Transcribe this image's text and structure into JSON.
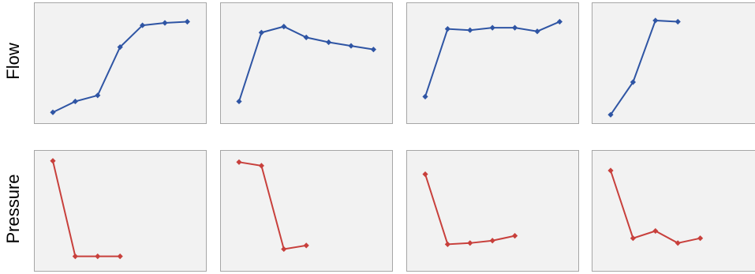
{
  "chart_data": [
    {
      "type": "line",
      "ylabel": "Flow",
      "color": "#2f55a4",
      "ylim": [
        0,
        100
      ],
      "values": [
        9,
        18,
        23,
        63,
        81,
        83,
        84
      ]
    },
    {
      "type": "line",
      "color": "#2f55a4",
      "ylim": [
        0,
        100
      ],
      "values": [
        18,
        75,
        80,
        71,
        67,
        64,
        61
      ]
    },
    {
      "type": "line",
      "color": "#2f55a4",
      "ylim": [
        0,
        100
      ],
      "values": [
        22,
        78,
        77,
        79,
        79,
        76,
        84
      ]
    },
    {
      "type": "line",
      "color": "#2f55a4",
      "ylim": [
        0,
        100
      ],
      "values": [
        7,
        34,
        85,
        84
      ]
    },
    {
      "type": "line",
      "ylabel": "Pressure",
      "color": "#c8403c",
      "ylim": [
        0,
        100
      ],
      "values": [
        91,
        12,
        12,
        12
      ]
    },
    {
      "type": "line",
      "color": "#c8403c",
      "ylim": [
        0,
        100
      ],
      "values": [
        90,
        87,
        18,
        21
      ]
    },
    {
      "type": "line",
      "color": "#c8403c",
      "ylim": [
        0,
        100
      ],
      "values": [
        80,
        22,
        23,
        25,
        29
      ]
    },
    {
      "type": "line",
      "color": "#c8403c",
      "ylim": [
        0,
        100
      ],
      "values": [
        83,
        27,
        33,
        23,
        27
      ]
    }
  ]
}
